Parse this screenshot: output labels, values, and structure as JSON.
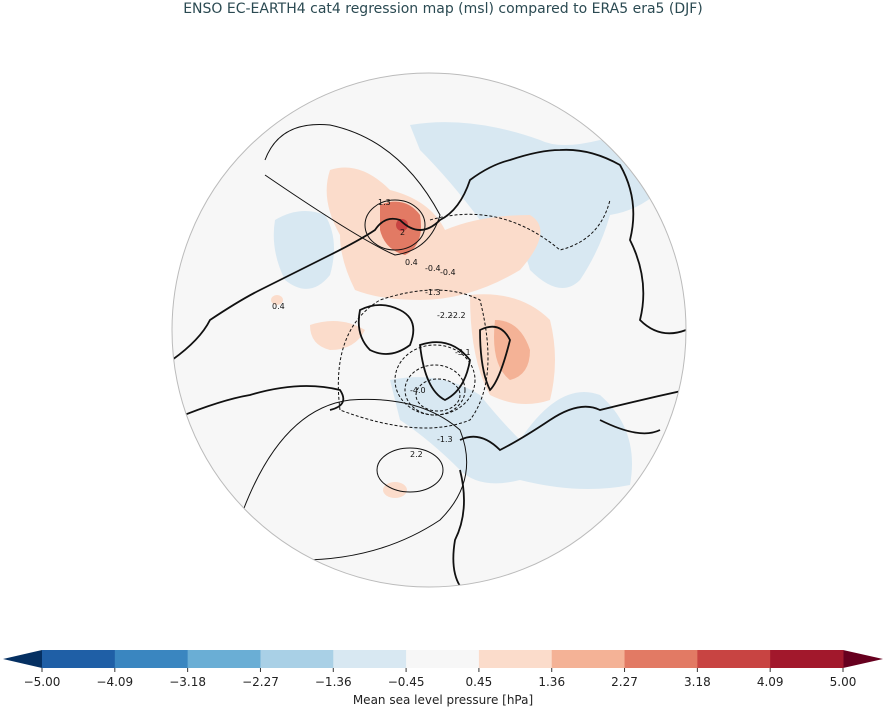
{
  "title": "ENSO EC-EARTH4 cat4 regression map (msl) compared to ERA5 era5 (DJF)",
  "chart_data": {
    "type": "heatmap",
    "projection": "north polar stereographic",
    "title": "ENSO EC-EARTH4 cat4 regression map (msl) compared to ERA5 era5 (DJF)",
    "colorbar": {
      "label": "Mean sea level pressure [hPa]",
      "ticks": [
        "-5.00",
        "-4.09",
        "-3.18",
        "-2.27",
        "-1.36",
        "-0.45",
        "0.45",
        "1.36",
        "2.27",
        "3.18",
        "4.09",
        "5.00"
      ],
      "colors": [
        "#1f5fa6",
        "#3a86c0",
        "#6aaed5",
        "#a9d0e6",
        "#d8e8f2",
        "#f7f7f7",
        "#fbdccb",
        "#f4b296",
        "#e27a64",
        "#c84442",
        "#a2182c"
      ],
      "under_color": "#053062",
      "over_color": "#67001f",
      "extend": "both",
      "orientation": "horizontal"
    },
    "contour_labels": [
      "1.3",
      "-0.4",
      "0.4",
      "-0.4",
      "-1.3",
      "-2.2",
      "-2.2",
      "-3.1",
      "-4.0",
      "-1.3",
      "2.2",
      "0.4",
      "2"
    ]
  }
}
